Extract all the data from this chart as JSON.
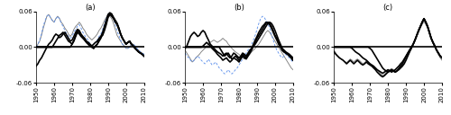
{
  "ylim": [
    -0.06,
    0.06
  ],
  "yticks": [
    -0.06,
    0.0,
    0.06
  ],
  "xticks": [
    1950,
    1960,
    1970,
    1980,
    1990,
    2000,
    2010
  ],
  "panels": [
    "(a)",
    "(b)",
    "(c)"
  ],
  "a_thick1": [
    -0.032,
    -0.028,
    -0.022,
    -0.018,
    -0.012,
    -0.006,
    0.0,
    0.005,
    0.008,
    0.012,
    0.018,
    0.022,
    0.02,
    0.016,
    0.018,
    0.022,
    0.025,
    0.02,
    0.015,
    0.01,
    0.012,
    0.018,
    0.025,
    0.03,
    0.028,
    0.022,
    0.018,
    0.015,
    0.01,
    0.008,
    0.005,
    0.002,
    0.005,
    0.008,
    0.01,
    0.015,
    0.018,
    0.02,
    0.028,
    0.038,
    0.05,
    0.055,
    0.052,
    0.048,
    0.042,
    0.038,
    0.03,
    0.022,
    0.015,
    0.01,
    0.005,
    0.008,
    0.01,
    0.005,
    0.002,
    -0.002,
    -0.005,
    -0.008,
    -0.01,
    -0.012,
    -0.015
  ],
  "a_thick2": [
    0.0,
    0.0,
    0.0,
    0.0,
    0.0,
    0.0,
    0.0,
    0.0,
    0.0,
    0.0,
    0.005,
    0.01,
    0.015,
    0.02,
    0.022,
    0.025,
    0.02,
    0.015,
    0.01,
    0.008,
    0.005,
    0.01,
    0.018,
    0.025,
    0.022,
    0.018,
    0.015,
    0.012,
    0.008,
    0.005,
    0.002,
    0.0,
    -0.002,
    0.002,
    0.005,
    0.01,
    0.015,
    0.022,
    0.032,
    0.042,
    0.052,
    0.056,
    0.055,
    0.05,
    0.045,
    0.04,
    0.032,
    0.022,
    0.015,
    0.01,
    0.005,
    0.008,
    0.01,
    0.005,
    0.002,
    -0.002,
    -0.005,
    -0.008,
    -0.01,
    -0.012,
    -0.015
  ],
  "a_thick3": [
    0.0,
    0.0,
    0.0,
    0.0,
    0.0,
    0.0,
    0.0,
    0.0,
    0.0,
    0.0,
    0.0,
    0.0,
    0.0,
    0.0,
    0.0,
    0.0,
    0.0,
    0.0,
    0.0,
    0.0,
    0.005,
    0.012,
    0.02,
    0.028,
    0.025,
    0.02,
    0.016,
    0.012,
    0.008,
    0.005,
    0.002,
    0.0,
    -0.002,
    0.002,
    0.005,
    0.012,
    0.018,
    0.025,
    0.035,
    0.045,
    0.055,
    0.058,
    0.056,
    0.05,
    0.045,
    0.04,
    0.032,
    0.022,
    0.015,
    0.01,
    0.005,
    0.008,
    0.01,
    0.005,
    0.002,
    -0.002,
    -0.005,
    -0.008,
    -0.01,
    -0.012,
    -0.015
  ],
  "a_thin_gray": [
    0.0,
    0.005,
    0.01,
    0.02,
    0.032,
    0.042,
    0.052,
    0.055,
    0.05,
    0.045,
    0.042,
    0.048,
    0.052,
    0.048,
    0.042,
    0.038,
    0.032,
    0.028,
    0.022,
    0.018,
    0.022,
    0.03,
    0.035,
    0.038,
    0.042,
    0.038,
    0.032,
    0.028,
    0.022,
    0.018,
    0.015,
    0.012,
    0.015,
    0.018,
    0.022,
    0.028,
    0.032,
    0.038,
    0.045,
    0.05,
    0.055,
    0.052,
    0.048,
    0.04,
    0.03,
    0.02,
    0.015,
    0.01,
    0.005,
    0.002,
    -0.002,
    -0.002,
    0.0,
    0.005,
    0.005,
    0.002,
    -0.002,
    -0.005,
    -0.008,
    -0.01,
    -0.012
  ],
  "a_thin_blue": [
    0.0,
    0.005,
    0.012,
    0.022,
    0.035,
    0.045,
    0.052,
    0.055,
    0.05,
    0.045,
    0.042,
    0.048,
    0.052,
    0.048,
    0.04,
    0.035,
    0.028,
    0.022,
    0.018,
    0.015,
    0.018,
    0.025,
    0.03,
    0.035,
    0.038,
    0.032,
    0.025,
    0.02,
    0.015,
    0.012,
    0.005,
    0.002,
    0.005,
    0.008,
    0.012,
    0.018,
    0.022,
    0.03,
    0.04,
    0.048,
    0.055,
    0.058,
    0.055,
    0.048,
    0.038,
    0.028,
    0.02,
    0.012,
    0.005,
    0.002,
    -0.002,
    -0.002,
    0.0,
    0.005,
    0.005,
    0.002,
    -0.002,
    -0.005,
    -0.008,
    -0.01,
    -0.012
  ],
  "b_thick1": [
    -0.002,
    0.002,
    0.01,
    0.018,
    0.022,
    0.025,
    0.022,
    0.018,
    0.02,
    0.025,
    0.028,
    0.025,
    0.018,
    0.012,
    0.005,
    0.002,
    -0.002,
    -0.005,
    -0.008,
    -0.01,
    -0.012,
    -0.015,
    -0.012,
    -0.01,
    -0.015,
    -0.018,
    -0.015,
    -0.01,
    -0.012,
    -0.015,
    -0.018,
    -0.015,
    -0.01,
    -0.012,
    -0.015,
    -0.01,
    -0.005,
    -0.002,
    0.002,
    0.005,
    0.01,
    0.015,
    0.02,
    0.025,
    0.03,
    0.035,
    0.04,
    0.042,
    0.04,
    0.035,
    0.028,
    0.02,
    0.012,
    0.005,
    -0.002,
    -0.005,
    -0.008,
    -0.01,
    -0.012,
    -0.015,
    -0.018
  ],
  "b_thick2": [
    0.0,
    0.0,
    0.0,
    0.0,
    0.0,
    0.0,
    0.0,
    0.0,
    0.0,
    0.0,
    0.002,
    0.005,
    0.008,
    0.005,
    0.002,
    -0.002,
    -0.005,
    -0.008,
    -0.012,
    -0.015,
    -0.018,
    -0.022,
    -0.02,
    -0.018,
    -0.022,
    -0.025,
    -0.022,
    -0.018,
    -0.02,
    -0.022,
    -0.025,
    -0.02,
    -0.015,
    -0.018,
    -0.02,
    -0.015,
    -0.01,
    -0.005,
    0.002,
    0.008,
    0.015,
    0.02,
    0.025,
    0.03,
    0.035,
    0.04,
    0.042,
    0.04,
    0.035,
    0.028,
    0.02,
    0.015,
    0.008,
    0.002,
    -0.005,
    -0.008,
    -0.01,
    -0.012,
    -0.015,
    -0.018,
    -0.022
  ],
  "b_thick3": [
    0.0,
    0.0,
    0.0,
    0.0,
    0.0,
    0.0,
    0.0,
    0.0,
    0.0,
    0.0,
    0.0,
    0.0,
    0.0,
    0.0,
    0.0,
    0.0,
    0.0,
    0.0,
    0.0,
    0.0,
    -0.005,
    -0.01,
    -0.015,
    -0.012,
    -0.01,
    -0.015,
    -0.02,
    -0.018,
    -0.015,
    -0.018,
    -0.022,
    -0.018,
    -0.012,
    -0.015,
    -0.018,
    -0.012,
    -0.008,
    -0.002,
    0.005,
    0.012,
    0.018,
    0.025,
    0.03,
    0.035,
    0.038,
    0.042,
    0.04,
    0.038,
    0.032,
    0.025,
    0.018,
    0.012,
    0.005,
    0.0,
    -0.005,
    -0.008,
    -0.01,
    -0.012,
    -0.015,
    -0.018,
    -0.022
  ],
  "b_thin_gray": [
    -0.005,
    -0.01,
    -0.015,
    -0.02,
    -0.025,
    -0.022,
    -0.018,
    -0.015,
    -0.012,
    -0.008,
    -0.005,
    -0.002,
    0.002,
    0.005,
    0.008,
    0.01,
    0.012,
    0.01,
    0.008,
    0.01,
    0.012,
    0.015,
    0.012,
    0.01,
    0.005,
    0.002,
    -0.002,
    -0.005,
    -0.008,
    -0.01,
    -0.012,
    -0.015,
    -0.018,
    -0.02,
    -0.018,
    -0.015,
    -0.012,
    -0.008,
    -0.005,
    -0.002,
    0.002,
    0.005,
    0.01,
    0.015,
    0.02,
    0.025,
    0.028,
    0.025,
    0.02,
    0.015,
    0.01,
    0.005,
    0.0,
    -0.005,
    -0.01,
    -0.015,
    -0.02,
    -0.025,
    -0.03,
    -0.035,
    -0.038
  ],
  "b_thin_blue": [
    -0.01,
    -0.015,
    -0.018,
    -0.022,
    -0.025,
    -0.022,
    -0.018,
    -0.015,
    -0.018,
    -0.022,
    -0.025,
    -0.028,
    -0.025,
    -0.02,
    -0.025,
    -0.03,
    -0.028,
    -0.025,
    -0.03,
    -0.035,
    -0.038,
    -0.042,
    -0.045,
    -0.042,
    -0.038,
    -0.042,
    -0.045,
    -0.042,
    -0.038,
    -0.035,
    -0.03,
    -0.025,
    -0.02,
    -0.015,
    -0.01,
    -0.005,
    0.0,
    0.005,
    0.012,
    0.02,
    0.03,
    0.04,
    0.048,
    0.052,
    0.05,
    0.045,
    0.04,
    0.032,
    0.022,
    0.012,
    0.002,
    -0.005,
    -0.01,
    -0.015,
    -0.018,
    -0.015,
    -0.012,
    -0.015,
    -0.018,
    -0.022,
    -0.025
  ],
  "c_thick1": [
    -0.008,
    -0.012,
    -0.015,
    -0.018,
    -0.02,
    -0.022,
    -0.025,
    -0.028,
    -0.025,
    -0.022,
    -0.025,
    -0.028,
    -0.025,
    -0.022,
    -0.025,
    -0.028,
    -0.03,
    -0.028,
    -0.025,
    -0.028,
    -0.03,
    -0.032,
    -0.035,
    -0.038,
    -0.042,
    -0.045,
    -0.048,
    -0.05,
    -0.048,
    -0.045,
    -0.042,
    -0.04,
    -0.038,
    -0.04,
    -0.042,
    -0.04,
    -0.038,
    -0.035,
    -0.032,
    -0.028,
    -0.022,
    -0.015,
    -0.008,
    -0.002,
    0.005,
    0.012,
    0.02,
    0.028,
    0.035,
    0.042,
    0.048,
    0.042,
    0.035,
    0.025,
    0.015,
    0.008,
    0.002,
    -0.005,
    -0.01,
    -0.015,
    -0.018
  ],
  "c_thick2": [
    0.0,
    0.0,
    0.0,
    0.0,
    0.0,
    0.0,
    0.0,
    0.0,
    0.0,
    0.0,
    -0.002,
    -0.005,
    -0.008,
    -0.01,
    -0.012,
    -0.015,
    -0.018,
    -0.02,
    -0.022,
    -0.025,
    -0.028,
    -0.03,
    -0.032,
    -0.035,
    -0.038,
    -0.04,
    -0.042,
    -0.044,
    -0.042,
    -0.04,
    -0.038,
    -0.04,
    -0.042,
    -0.04,
    -0.038,
    -0.035,
    -0.032,
    -0.028,
    -0.025,
    -0.02,
    -0.015,
    -0.01,
    -0.005,
    0.0,
    0.005,
    0.012,
    0.02,
    0.028,
    0.035,
    0.042,
    0.048,
    0.042,
    0.035,
    0.025,
    0.015,
    0.008,
    0.002,
    -0.005,
    -0.01,
    -0.015,
    -0.018
  ],
  "c_thick3": [
    0.0,
    0.0,
    0.0,
    0.0,
    0.0,
    0.0,
    0.0,
    0.0,
    0.0,
    0.0,
    0.0,
    0.0,
    0.0,
    0.0,
    0.0,
    0.0,
    0.0,
    0.0,
    0.0,
    0.0,
    -0.002,
    -0.005,
    -0.01,
    -0.015,
    -0.02,
    -0.025,
    -0.03,
    -0.035,
    -0.038,
    -0.04,
    -0.042,
    -0.04,
    -0.038,
    -0.04,
    -0.042,
    -0.04,
    -0.036,
    -0.032,
    -0.028,
    -0.022,
    -0.016,
    -0.01,
    -0.005,
    0.0,
    0.005,
    0.012,
    0.02,
    0.028,
    0.035,
    0.042,
    0.048,
    0.042,
    0.035,
    0.025,
    0.015,
    0.008,
    0.002,
    -0.005,
    -0.01,
    -0.015,
    -0.018
  ],
  "c_thin_gray": [
    -0.005,
    -0.01,
    -0.015,
    -0.018,
    -0.02,
    -0.022,
    -0.024,
    -0.026,
    -0.023,
    -0.02,
    -0.022,
    -0.025,
    -0.022,
    -0.02,
    -0.022,
    -0.025,
    -0.028,
    -0.026,
    -0.023,
    -0.026,
    -0.028,
    -0.03,
    -0.032,
    -0.035,
    -0.038,
    -0.042,
    -0.045,
    -0.048,
    -0.046,
    -0.043,
    -0.04,
    -0.038,
    -0.036,
    -0.038,
    -0.04,
    -0.038,
    -0.036,
    -0.033,
    -0.03,
    -0.025,
    -0.02,
    -0.014,
    -0.008,
    -0.002,
    0.004,
    0.01,
    0.018,
    0.025,
    0.032,
    0.038,
    0.043,
    0.038,
    0.032,
    0.022,
    0.013,
    0.006,
    0.0,
    -0.006,
    -0.012,
    -0.018,
    -0.022
  ]
}
